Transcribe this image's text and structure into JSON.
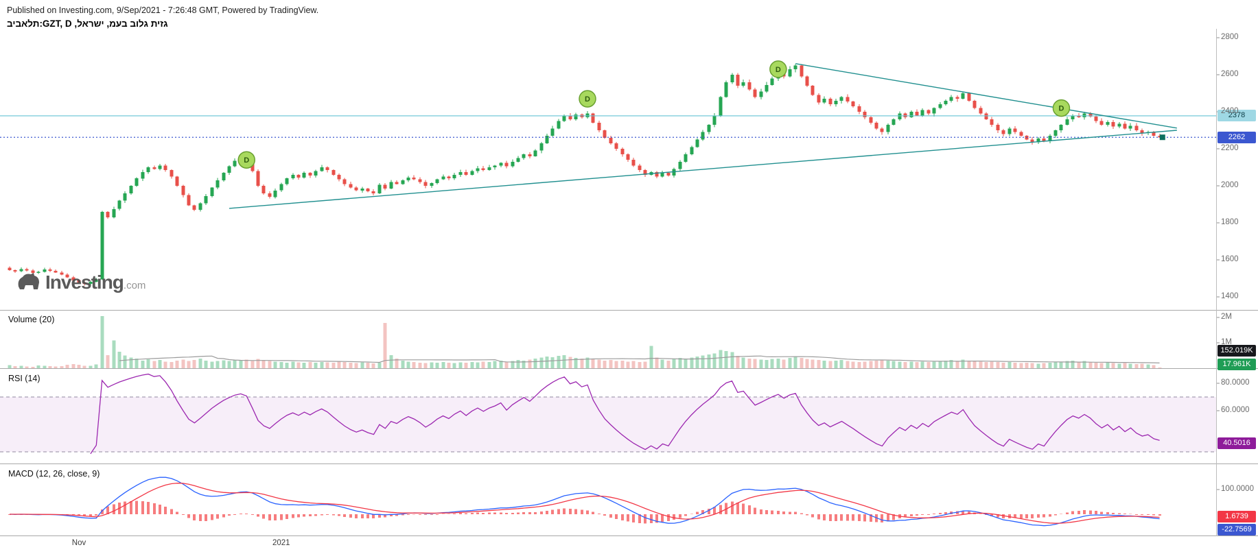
{
  "header": {
    "published_line": "Published on Investing.com, 9/Sep/2021 - 7:26:48 GMT, Powered by TradingView.",
    "symbol_line": "תלאביב:GZT, D ,גזית גלוב בעמ, ישראל"
  },
  "watermark": {
    "brand": "Investing",
    "suffix": ".com"
  },
  "price_scale": {
    "ticks": [
      {
        "label": "2800",
        "value": 2800
      },
      {
        "label": "2600",
        "value": 2600
      },
      {
        "label": "2400",
        "value": 2400
      },
      {
        "label": "2200",
        "value": 2200
      },
      {
        "label": "2000",
        "value": 2000
      },
      {
        "label": "1800",
        "value": 1800
      },
      {
        "label": "1600",
        "value": 1600
      },
      {
        "label": "1400",
        "value": 1400
      }
    ],
    "price_lines": [
      {
        "label": "2378",
        "value": 2378,
        "color": "#63c3d3",
        "badge_bg": "#9ed8e4",
        "badge_text": "#0b3c45",
        "style": "solid"
      },
      {
        "label": "2262",
        "value": 2262,
        "color": "#3b57d0",
        "badge_bg": "#3b57d0",
        "badge_text": "#ffffff",
        "style": "dotted"
      }
    ]
  },
  "panes": {
    "volume": {
      "title": "Volume (20)",
      "ticks": [
        {
          "label": "2M",
          "value": 2000
        },
        {
          "label": "1M",
          "value": 1000
        }
      ],
      "badges": [
        {
          "label": "152.019K",
          "bg": "#17181c",
          "fg": "#ffffff"
        },
        {
          "label": "17.961K",
          "bg": "#1f9d55",
          "fg": "#ffffff"
        }
      ]
    },
    "rsi": {
      "title": "RSI (14)",
      "ticks": [
        {
          "label": "80.0000",
          "value": 80
        },
        {
          "label": "60.0000",
          "value": 60
        }
      ],
      "badge": {
        "label": "40.5016",
        "bg": "#8e1b9a",
        "fg": "#ffffff"
      },
      "upper_band": 70,
      "lower_band": 30
    },
    "macd": {
      "title": "MACD (12, 26, close, 9)",
      "ticks": [
        {
          "label": "100.0000",
          "value": 100
        }
      ],
      "badges": [
        {
          "label": "1.6739",
          "bg": "#f23645",
          "fg": "#ffffff"
        },
        {
          "label": "-22.7569",
          "bg": "#3b57d0",
          "fg": "#ffffff"
        }
      ]
    }
  },
  "time_axis": [
    {
      "label": "Nov",
      "index": 12
    },
    {
      "label": "2021",
      "index": 47
    }
  ],
  "events": [
    {
      "label": "D",
      "index": 41,
      "price": 2140
    },
    {
      "label": "D",
      "index": 100,
      "price": 2470
    },
    {
      "label": "D",
      "index": 133,
      "price": 2630
    },
    {
      "label": "D",
      "index": 182,
      "price": 2420
    }
  ],
  "trendlines": [
    {
      "i1": 38,
      "p1": 1878,
      "i2": 202,
      "p2": 2300
    },
    {
      "i1": 136,
      "p1": 2660,
      "i2": 202,
      "p2": 2312
    }
  ],
  "last_price_marker": {
    "price": 2262,
    "index": 199.5
  },
  "chart_data": {
    "type": "candlestick",
    "symbol": "GZT",
    "interval": "D",
    "title": "תלאביב:GZT, D ,גזית גלוב בעמ, ישראל",
    "price_axis_range": [
      1400,
      2800
    ],
    "last_close": 2262,
    "resistance_line": 2378,
    "closes": [
      1545,
      1538,
      1550,
      1542,
      1530,
      1535,
      1548,
      1540,
      1532,
      1520,
      1505,
      1490,
      1478,
      1470,
      1482,
      1495,
      1860,
      1830,
      1875,
      1920,
      1960,
      2000,
      2040,
      2075,
      2100,
      2090,
      2110,
      2085,
      2050,
      2000,
      1950,
      1895,
      1870,
      1905,
      1945,
      1990,
      2030,
      2070,
      2105,
      2135,
      2150,
      2140,
      2080,
      2000,
      1960,
      1940,
      1975,
      2010,
      2040,
      2060,
      2045,
      2070,
      2055,
      2080,
      2100,
      2085,
      2060,
      2035,
      2010,
      1990,
      1975,
      1985,
      1970,
      1960,
      2005,
      1985,
      2020,
      2010,
      2030,
      2045,
      2035,
      2020,
      2000,
      2015,
      2035,
      2050,
      2040,
      2060,
      2075,
      2060,
      2080,
      2095,
      2085,
      2100,
      2110,
      2125,
      2105,
      2130,
      2150,
      2170,
      2160,
      2190,
      2230,
      2270,
      2310,
      2350,
      2380,
      2360,
      2385,
      2370,
      2390,
      2340,
      2300,
      2260,
      2230,
      2200,
      2170,
      2140,
      2110,
      2085,
      2060,
      2075,
      2050,
      2070,
      2055,
      2090,
      2130,
      2170,
      2210,
      2250,
      2290,
      2330,
      2380,
      2480,
      2560,
      2600,
      2540,
      2560,
      2520,
      2480,
      2510,
      2545,
      2580,
      2610,
      2590,
      2630,
      2650,
      2590,
      2540,
      2490,
      2450,
      2470,
      2440,
      2460,
      2480,
      2455,
      2430,
      2400,
      2370,
      2340,
      2310,
      2290,
      2330,
      2360,
      2390,
      2370,
      2400,
      2380,
      2410,
      2390,
      2420,
      2440,
      2460,
      2480,
      2470,
      2500,
      2460,
      2420,
      2390,
      2360,
      2330,
      2300,
      2280,
      2310,
      2290,
      2270,
      2250,
      2235,
      2255,
      2240,
      2270,
      2300,
      2330,
      2360,
      2380,
      2370,
      2390,
      2375,
      2350,
      2330,
      2345,
      2320,
      2335,
      2310,
      2325,
      2300,
      2285,
      2290,
      2270,
      2262
    ],
    "volumes_thousands": [
      120,
      85,
      95,
      70,
      60,
      110,
      90,
      75,
      65,
      80,
      140,
      160,
      130,
      100,
      90,
      150,
      2050,
      520,
      1100,
      650,
      500,
      420,
      380,
      300,
      350,
      280,
      320,
      260,
      240,
      300,
      340,
      280,
      320,
      380,
      300,
      260,
      290,
      310,
      280,
      330,
      300,
      340,
      290,
      360,
      320,
      280,
      260,
      240,
      220,
      260,
      230,
      210,
      240,
      220,
      250,
      230,
      210,
      260,
      240,
      220,
      200,
      230,
      210,
      190,
      220,
      1780,
      520,
      380,
      300,
      260,
      240,
      220,
      200,
      230,
      210,
      240,
      220,
      200,
      230,
      210,
      250,
      230,
      260,
      240,
      280,
      300,
      260,
      290,
      320,
      300,
      340,
      380,
      420,
      460,
      430,
      480,
      520,
      440,
      400,
      380,
      420,
      380,
      340,
      300,
      320,
      280,
      300,
      260,
      280,
      240,
      260,
      880,
      420,
      340,
      300,
      360,
      400,
      380,
      420,
      460,
      500,
      540,
      580,
      720,
      680,
      640,
      480,
      420,
      380,
      360,
      340,
      320,
      360,
      380,
      340,
      400,
      440,
      400,
      360,
      340,
      320,
      300,
      280,
      300,
      320,
      280,
      260,
      240,
      260,
      280,
      300,
      340,
      300,
      280,
      260,
      240,
      260,
      240,
      260,
      240,
      260,
      280,
      300,
      320,
      280,
      340,
      300,
      280,
      260,
      240,
      260,
      240,
      220,
      240,
      220,
      200,
      220,
      200,
      180,
      200,
      220,
      240,
      260,
      280,
      300,
      260,
      280,
      240,
      220,
      200,
      220,
      200,
      180,
      200,
      180,
      160,
      170,
      150,
      120,
      18
    ],
    "indicators": {
      "volume_ma_length": 20,
      "rsi_length": 14,
      "macd": [
        12,
        26,
        9
      ]
    },
    "colors": {
      "up": "#26a653",
      "down": "#e8504a",
      "volume_up": "#a9dcbf",
      "volume_down": "#f3c4c2",
      "volume_ma": "#9b9b9b",
      "rsi_line": "#9c27b0",
      "rsi_band_fill": "rgba(156,39,176,0.08)",
      "macd_line": "#2962ff",
      "macd_signal": "#f23645",
      "macd_hist": "#f45b5e",
      "trendline": "#208f8f",
      "marker_fill": "#a8d95e",
      "marker_stroke": "#69a030"
    }
  }
}
